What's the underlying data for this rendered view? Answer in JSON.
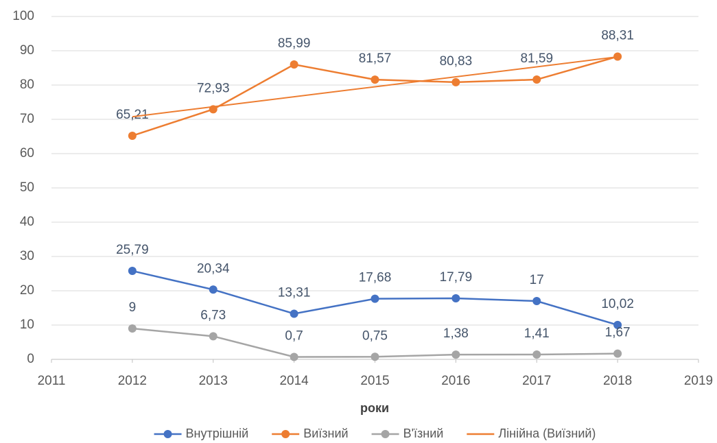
{
  "chart_data": {
    "type": "line",
    "x_label": "роки",
    "x": [
      2012,
      2013,
      2014,
      2015,
      2016,
      2017,
      2018
    ],
    "xlim": [
      2011,
      2019
    ],
    "xticks": [
      2011,
      2012,
      2013,
      2014,
      2015,
      2016,
      2017,
      2018,
      2019
    ],
    "ylim": [
      0,
      100
    ],
    "yticks": [
      0,
      10,
      20,
      30,
      40,
      50,
      60,
      70,
      80,
      90,
      100
    ],
    "grid": true,
    "legend": "bottom",
    "series": [
      {
        "name": "Внутрішній",
        "color": "#4472c4",
        "values": [
          25.79,
          20.34,
          13.31,
          17.68,
          17.79,
          17,
          10.02
        ],
        "value_labels": [
          "25,79",
          "20,34",
          "13,31",
          "17,68",
          "17,79",
          "17",
          "10,02"
        ]
      },
      {
        "name": "Виїзний",
        "color": "#ed7d31",
        "values": [
          65.21,
          72.93,
          85.99,
          81.57,
          80.83,
          81.59,
          88.31
        ],
        "value_labels": [
          "65,21",
          "72,93",
          "85,99",
          "81,57",
          "80,83",
          "81,59",
          "88,31"
        ]
      },
      {
        "name": "В'їзний",
        "color": "#a5a5a5",
        "values": [
          9,
          6.73,
          0.7,
          0.75,
          1.38,
          1.41,
          1.67
        ],
        "value_labels": [
          "9",
          "6,73",
          "0,7",
          "0,75",
          "1,38",
          "1,41",
          "1,67"
        ]
      },
      {
        "name": "Лінійна (Виїзний)",
        "color": "#ed7d31",
        "trendline": true,
        "x": [
          2012,
          2018
        ],
        "values": [
          70.76,
          88.22
        ]
      }
    ]
  }
}
